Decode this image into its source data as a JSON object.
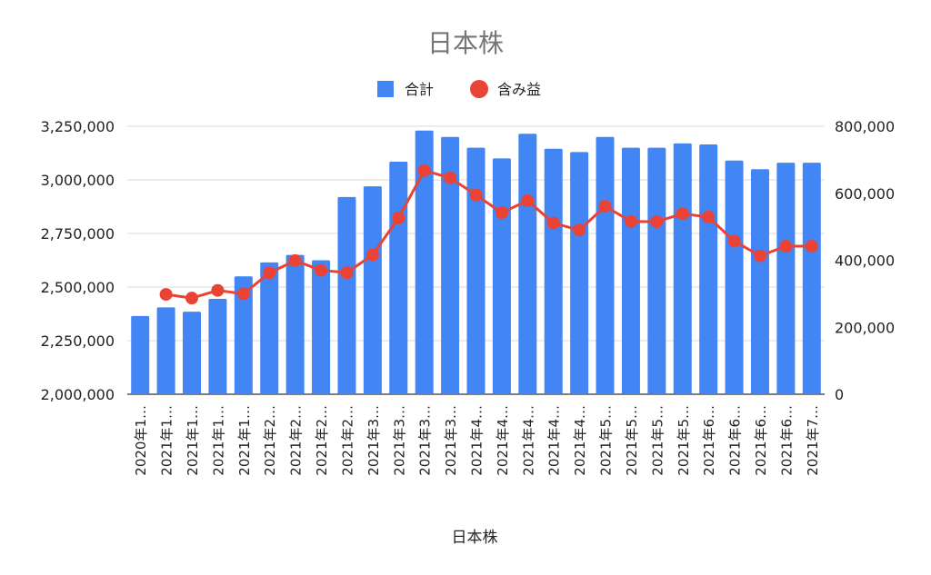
{
  "chart_data": {
    "type": "bar",
    "title": "日本株",
    "xlabel": "日本株",
    "ylabel": "",
    "y2label": "",
    "categories": [
      "2020年1…",
      "2021年1…",
      "2021年1…",
      "2021年1…",
      "2021年1…",
      "2021年2…",
      "2021年2…",
      "2021年2…",
      "2021年2…",
      "2021年3…",
      "2021年3…",
      "2021年3…",
      "2021年3…",
      "2021年4…",
      "2021年4…",
      "2021年4…",
      "2021年4…",
      "2021年4…",
      "2021年5…",
      "2021年5…",
      "2021年5…",
      "2021年5…",
      "2021年6…",
      "2021年6…",
      "2021年6…",
      "2021年6…",
      "2021年7…"
    ],
    "ylim": [
      2000000,
      3250000
    ],
    "y_ticks": [
      "2,000,000",
      "2,250,000",
      "2,500,000",
      "2,750,000",
      "3,000,000",
      "3,250,000"
    ],
    "y2lim": [
      0,
      800000
    ],
    "y2_ticks": [
      "0",
      "200,000",
      "400,000",
      "600,000",
      "800,000"
    ],
    "grid": true,
    "legend_position": "top",
    "series": [
      {
        "name": "合計",
        "type": "bar",
        "axis": "left",
        "color": "#4285f4",
        "values": [
          2365000,
          2405000,
          2385000,
          2445000,
          2550000,
          2615000,
          2650000,
          2625000,
          2920000,
          2970000,
          3085000,
          3230000,
          3200000,
          3150000,
          3100000,
          3215000,
          3145000,
          3130000,
          3200000,
          3150000,
          3150000,
          3170000,
          3165000,
          3090000,
          3050000,
          3080000,
          3080000
        ]
      },
      {
        "name": "含み益",
        "type": "line",
        "axis": "right",
        "color": "#ea4335",
        "values": [
          null,
          298000,
          287000,
          310000,
          300000,
          362000,
          399000,
          370000,
          363000,
          416000,
          526000,
          668000,
          646000,
          595000,
          542000,
          578000,
          511000,
          490000,
          561000,
          516000,
          515000,
          539000,
          529000,
          457000,
          413000,
          442000,
          442000
        ]
      }
    ]
  }
}
